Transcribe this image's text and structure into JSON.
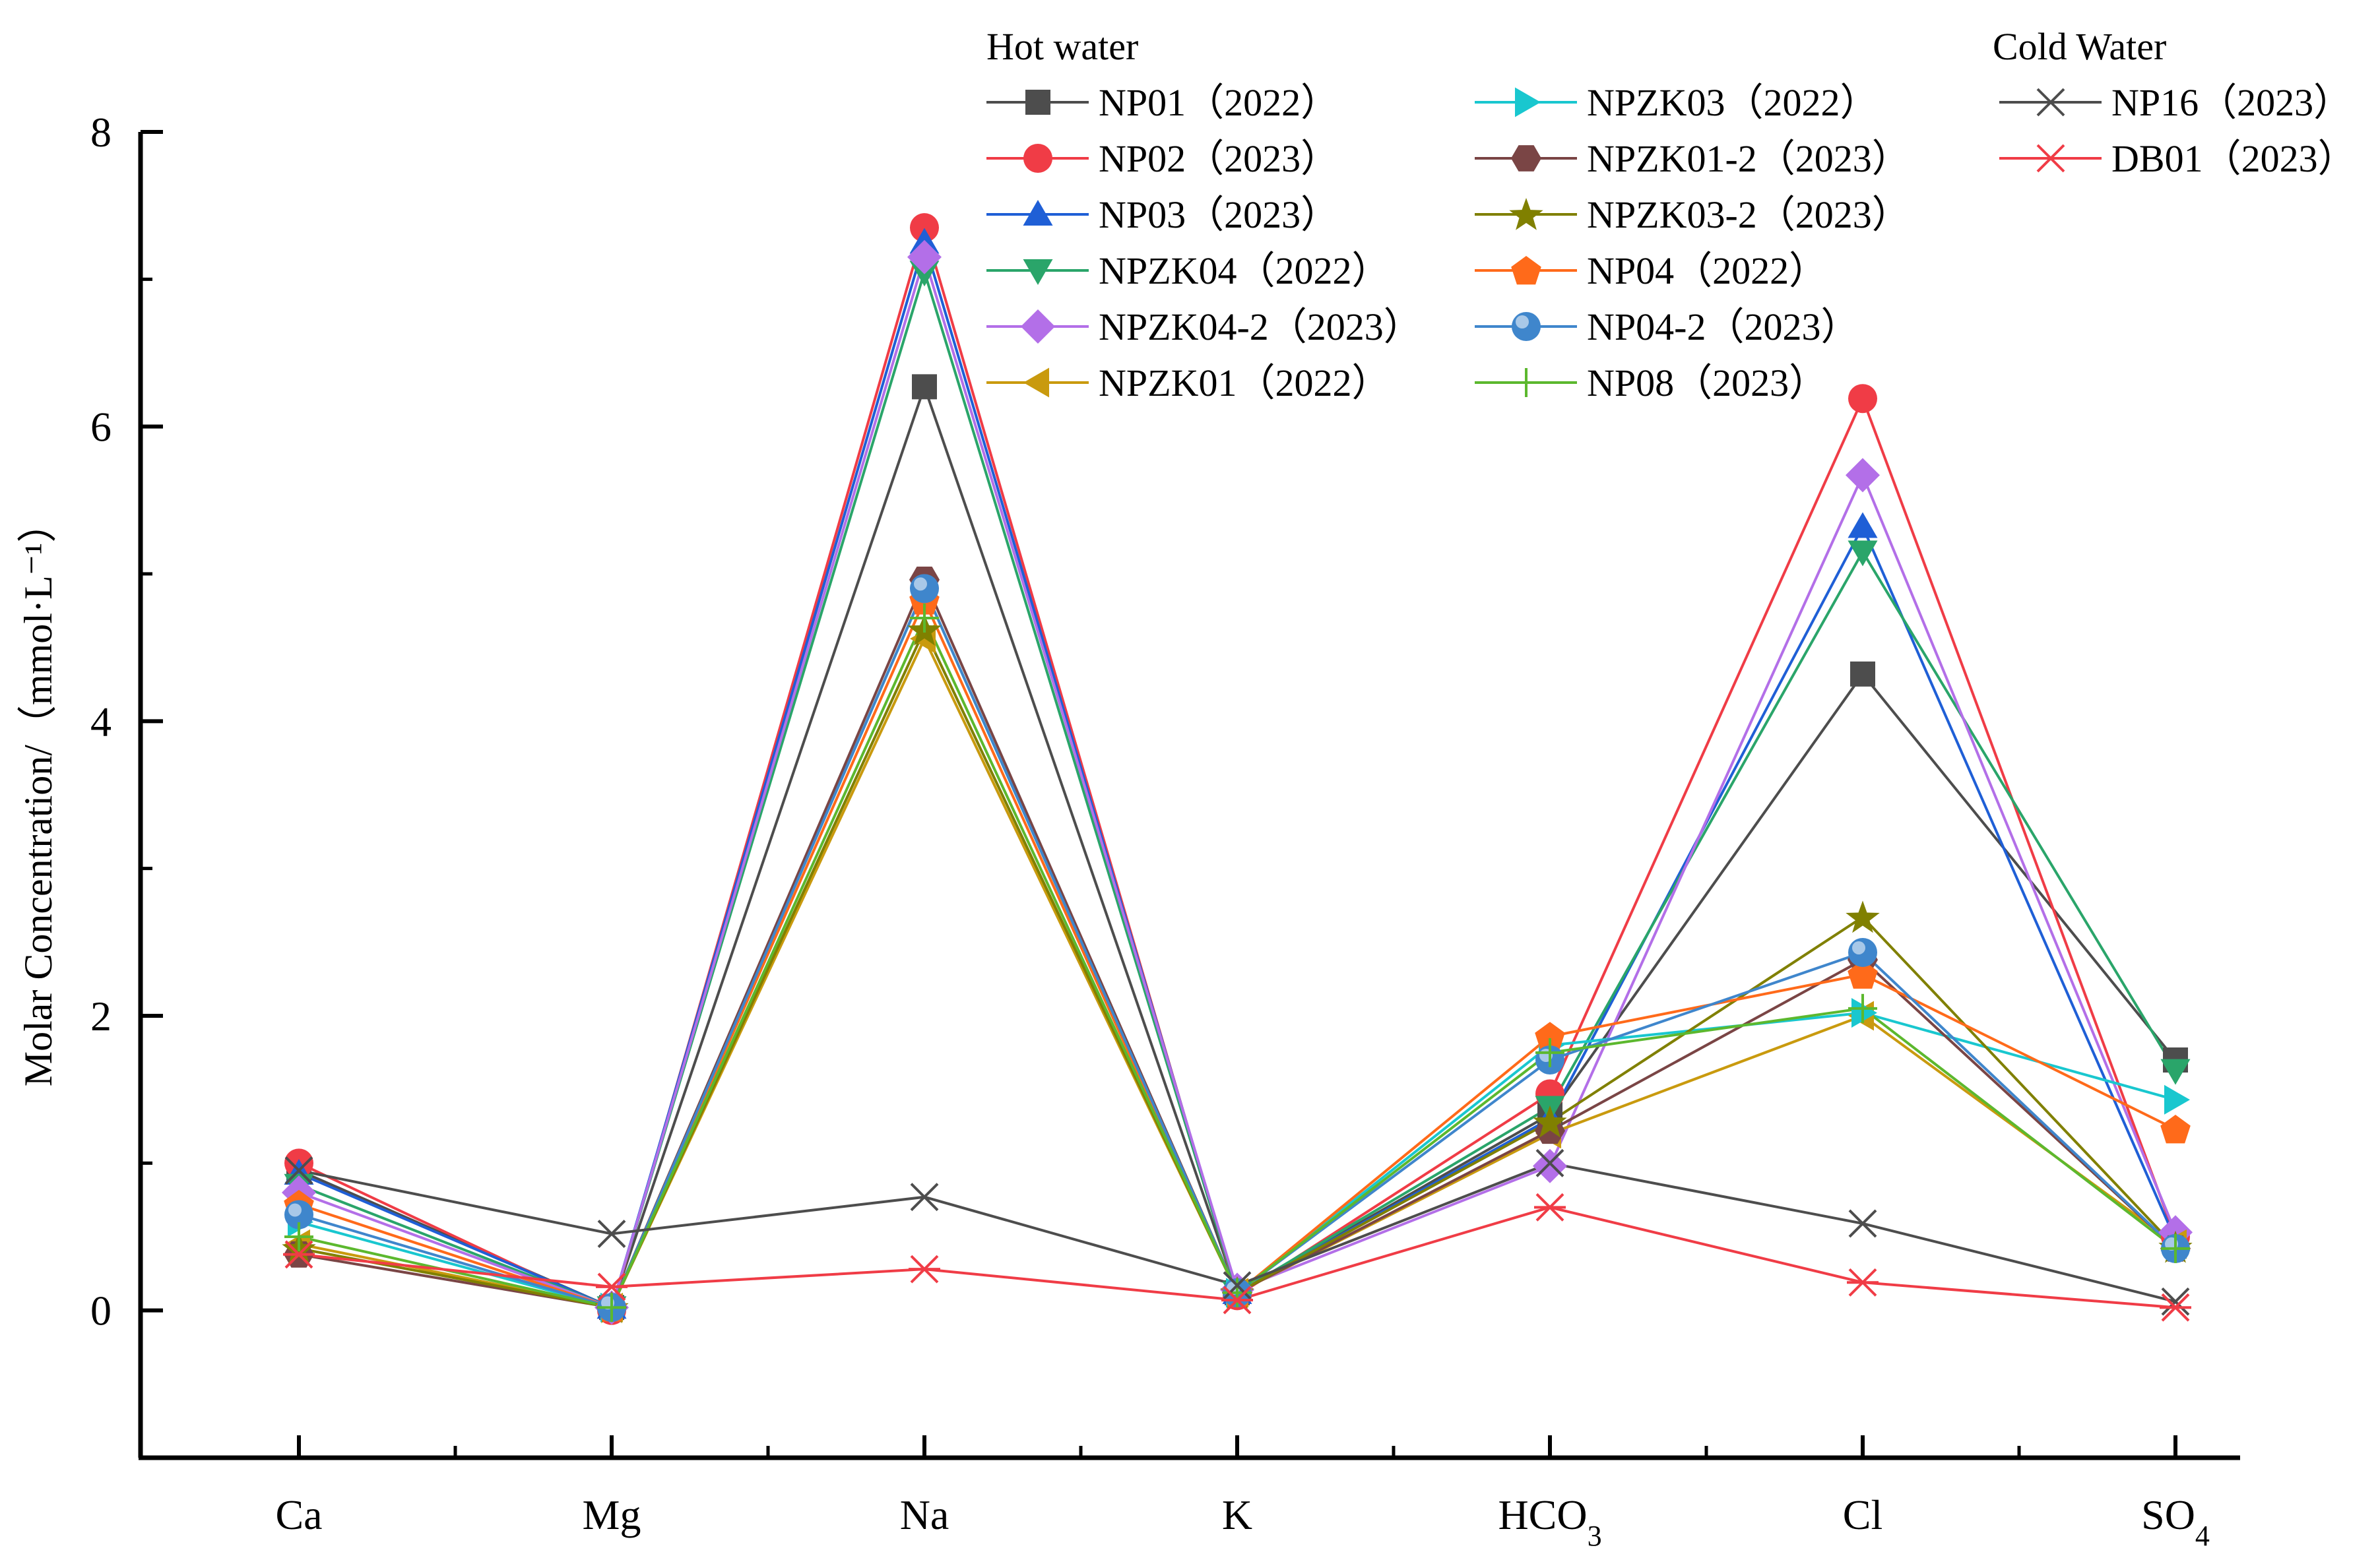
{
  "chart_data": {
    "type": "line",
    "title": "",
    "xlabel": "",
    "ylabel": "Molar Concentration/（mmol·L⁻¹）",
    "ylim": [
      -1,
      8
    ],
    "yticks": [
      0,
      2,
      4,
      6,
      8
    ],
    "categories": [
      "Ca",
      "Mg",
      "Na",
      "K",
      "HCO3",
      "Cl",
      "SO4"
    ],
    "category_labels": [
      {
        "main": "Ca",
        "sub": ""
      },
      {
        "main": "Mg",
        "sub": ""
      },
      {
        "main": "Na",
        "sub": ""
      },
      {
        "main": "K",
        "sub": ""
      },
      {
        "main": "HCO",
        "sub": "3"
      },
      {
        "main": "Cl",
        "sub": ""
      },
      {
        "main": "SO",
        "sub": "4"
      }
    ],
    "legend_groups": {
      "hot": "Hot water",
      "cold": "Cold Water"
    },
    "legend_position": "top-right",
    "series": [
      {
        "name": "NP01（2022）",
        "group": "hot",
        "color": "#4d4d4d",
        "marker": "square",
        "values": [
          0.95,
          0.02,
          6.27,
          0.12,
          1.33,
          4.32,
          1.7
        ]
      },
      {
        "name": "NP02（2023）",
        "group": "hot",
        "color": "#f03c46",
        "marker": "circle",
        "values": [
          1.0,
          0.0,
          7.35,
          0.1,
          1.47,
          6.19,
          0.5
        ]
      },
      {
        "name": "NP03（2023）",
        "group": "hot",
        "color": "#1f5fd6",
        "marker": "triangle-up",
        "values": [
          0.93,
          0.02,
          7.25,
          0.12,
          1.3,
          5.32,
          0.48
        ]
      },
      {
        "name": "NPZK04（2022）",
        "group": "hot",
        "color": "#2aa56a",
        "marker": "triangle-down",
        "values": [
          0.85,
          0.02,
          7.05,
          0.12,
          1.38,
          5.15,
          1.63
        ]
      },
      {
        "name": "NPZK04-2（2023）",
        "group": "hot",
        "color": "#b36fe8",
        "marker": "diamond",
        "values": [
          0.8,
          0.02,
          7.15,
          0.14,
          0.98,
          5.67,
          0.53
        ]
      },
      {
        "name": "NPZK01（2022）",
        "group": "hot",
        "color": "#c99a0e",
        "marker": "triangle-left",
        "values": [
          0.45,
          0.02,
          4.56,
          0.12,
          1.2,
          2.0,
          0.45
        ]
      },
      {
        "name": "NPZK03（2022）",
        "group": "hot",
        "color": "#19c7cf",
        "marker": "triangle-right",
        "values": [
          0.6,
          0.02,
          4.9,
          0.12,
          1.8,
          2.02,
          1.43
        ]
      },
      {
        "name": "NPZK01-2（2023）",
        "group": "hot",
        "color": "#7a4545",
        "marker": "hexagon",
        "values": [
          0.38,
          0.02,
          4.96,
          0.12,
          1.22,
          2.38,
          0.42
        ]
      },
      {
        "name": "NPZK03-2（2023）",
        "group": "hot",
        "color": "#808000",
        "marker": "star",
        "values": [
          0.42,
          0.02,
          4.62,
          0.12,
          1.28,
          2.67,
          0.43
        ]
      },
      {
        "name": "NP04（2022）",
        "group": "hot",
        "color": "#ff6a1a",
        "marker": "pentagon",
        "values": [
          0.72,
          0.02,
          4.82,
          0.12,
          1.86,
          2.28,
          1.23
        ]
      },
      {
        "name": "NP04-2（2023）",
        "group": "hot",
        "color": "#3f86cc",
        "marker": "sphere",
        "values": [
          0.65,
          0.02,
          4.9,
          0.12,
          1.7,
          2.43,
          0.42
        ]
      },
      {
        "name": "NP08（2023）",
        "group": "hot",
        "color": "#5cb82e",
        "marker": "plus",
        "values": [
          0.5,
          0.02,
          4.7,
          0.12,
          1.75,
          2.05,
          0.42
        ]
      },
      {
        "name": "NP16（2023）",
        "group": "cold",
        "color": "#4d4d4d",
        "marker": "x",
        "values": [
          0.95,
          0.52,
          0.77,
          0.17,
          1.0,
          0.59,
          0.06
        ]
      },
      {
        "name": "DB01（2023）",
        "group": "cold",
        "color": "#f03c46",
        "marker": "asterisk",
        "values": [
          0.38,
          0.16,
          0.28,
          0.07,
          0.7,
          0.19,
          0.02
        ]
      }
    ]
  }
}
